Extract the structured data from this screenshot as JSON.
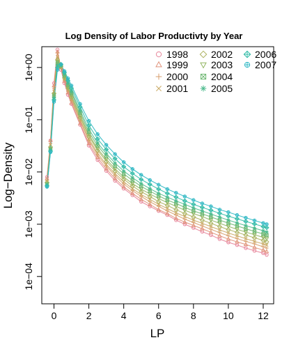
{
  "chart_data": {
    "type": "scatter",
    "title": "Log Density of Labor Productivty by Year",
    "xlabel": "LP",
    "ylabel": "Log−Density",
    "y_scale": "log10",
    "xlim": [
      -0.7,
      12.6
    ],
    "ylim": [
      3e-05,
      2.5
    ],
    "grid": false,
    "legend_position": "top-right",
    "x_ticks": [
      0,
      2,
      4,
      6,
      8,
      10,
      12
    ],
    "x_tick_labels": [
      "0",
      "2",
      "4",
      "6",
      "8",
      "10",
      "12"
    ],
    "y_ticks": [
      0.0001,
      0.001,
      0.01,
      0.1,
      1
    ],
    "y_tick_labels": [
      "1e−04",
      "1e−03",
      "1e−02",
      "1e−01",
      "1e+00"
    ],
    "x": [
      -0.4,
      -0.2,
      0.0,
      0.2,
      0.4,
      0.6,
      0.8,
      1.0,
      1.5,
      2.0,
      2.5,
      3.0,
      3.5,
      4.0,
      4.5,
      5.0,
      5.5,
      6.0,
      6.5,
      7.0,
      7.5,
      8.0,
      8.5,
      9.0,
      9.5,
      10.0,
      10.5,
      11.0,
      11.5,
      12.0,
      12.2
    ],
    "series": [
      {
        "name": "1998",
        "symbol": "circle",
        "color": "#E7859A",
        "values": [
          0.008,
          0.04,
          0.5,
          2.2,
          0.9,
          0.5,
          0.3,
          0.2,
          0.08,
          0.032,
          0.017,
          0.0105,
          0.0068,
          0.0048,
          0.0036,
          0.0027,
          0.0022,
          0.0018,
          0.0015,
          0.0012,
          0.001,
          0.00085,
          0.00072,
          0.00062,
          0.00052,
          0.00045,
          0.0004,
          0.00035,
          0.00031,
          0.00028,
          0.00026
        ]
      },
      {
        "name": "1999",
        "symbol": "triangle",
        "color": "#E0927A",
        "values": [
          0.0075,
          0.04,
          0.45,
          2.0,
          1.0,
          0.55,
          0.33,
          0.21,
          0.085,
          0.035,
          0.019,
          0.0115,
          0.0075,
          0.0052,
          0.0039,
          0.003,
          0.0024,
          0.0019,
          0.0016,
          0.0013,
          0.0011,
          0.00095,
          0.00082,
          0.0007,
          0.0006,
          0.00052,
          0.00046,
          0.00041,
          0.00036,
          0.00032,
          0.0003
        ]
      },
      {
        "name": "2000",
        "symbol": "plus",
        "color": "#D79E6B",
        "values": [
          0.007,
          0.035,
          0.4,
          1.9,
          1.0,
          0.58,
          0.35,
          0.23,
          0.095,
          0.04,
          0.021,
          0.013,
          0.0085,
          0.0059,
          0.0044,
          0.0034,
          0.0027,
          0.0022,
          0.0018,
          0.0015,
          0.00125,
          0.00108,
          0.00093,
          0.0008,
          0.00069,
          0.0006,
          0.00053,
          0.00047,
          0.00042,
          0.00037,
          0.00035
        ]
      },
      {
        "name": "2001",
        "symbol": "x",
        "color": "#C9A964",
        "values": [
          0.0065,
          0.033,
          0.35,
          1.6,
          1.0,
          0.6,
          0.37,
          0.25,
          0.1,
          0.043,
          0.023,
          0.014,
          0.0093,
          0.0065,
          0.0048,
          0.0037,
          0.003,
          0.0024,
          0.002,
          0.00165,
          0.0014,
          0.0012,
          0.00104,
          0.0009,
          0.00078,
          0.00068,
          0.0006,
          0.00053,
          0.00047,
          0.00042,
          0.0004
        ]
      },
      {
        "name": "2002",
        "symbol": "diamond",
        "color": "#ACB15E",
        "values": [
          0.0063,
          0.03,
          0.32,
          1.4,
          1.05,
          0.63,
          0.4,
          0.27,
          0.11,
          0.048,
          0.026,
          0.016,
          0.0104,
          0.0073,
          0.0054,
          0.0042,
          0.0034,
          0.0027,
          0.0023,
          0.0019,
          0.0016,
          0.00138,
          0.0012,
          0.00104,
          0.0009,
          0.00079,
          0.0007,
          0.00062,
          0.00055,
          0.00049,
          0.00046
        ]
      },
      {
        "name": "2003",
        "symbol": "triangle-down",
        "color": "#90B45F",
        "values": [
          0.006,
          0.028,
          0.3,
          1.3,
          1.05,
          0.66,
          0.42,
          0.29,
          0.12,
          0.052,
          0.028,
          0.0175,
          0.0115,
          0.008,
          0.006,
          0.0047,
          0.0038,
          0.0031,
          0.0026,
          0.0022,
          0.00185,
          0.0016,
          0.0014,
          0.0012,
          0.00104,
          0.00091,
          0.0008,
          0.00071,
          0.00063,
          0.00056,
          0.00053
        ]
      },
      {
        "name": "2004",
        "symbol": "square-cross",
        "color": "#6FB873",
        "values": [
          0.0058,
          0.027,
          0.28,
          1.2,
          1.1,
          0.7,
          0.46,
          0.32,
          0.135,
          0.058,
          0.032,
          0.02,
          0.013,
          0.0092,
          0.0069,
          0.0053,
          0.0043,
          0.0035,
          0.0029,
          0.0025,
          0.0021,
          0.0018,
          0.00158,
          0.00138,
          0.0012,
          0.00105,
          0.00093,
          0.00082,
          0.00073,
          0.00065,
          0.00062
        ]
      },
      {
        "name": "2005",
        "symbol": "asterisk",
        "color": "#4EBB8E",
        "values": [
          0.0056,
          0.026,
          0.26,
          1.1,
          1.1,
          0.75,
          0.5,
          0.35,
          0.15,
          0.066,
          0.036,
          0.0225,
          0.0148,
          0.0104,
          0.0078,
          0.006,
          0.0048,
          0.0039,
          0.0033,
          0.0028,
          0.0024,
          0.00205,
          0.0018,
          0.00157,
          0.00137,
          0.0012,
          0.00106,
          0.00094,
          0.00084,
          0.00075,
          0.00071
        ]
      },
      {
        "name": "2006",
        "symbol": "diamond-plus",
        "color": "#35BCA8",
        "values": [
          0.0054,
          0.025,
          0.24,
          1.0,
          1.15,
          0.8,
          0.56,
          0.4,
          0.175,
          0.078,
          0.043,
          0.027,
          0.018,
          0.0126,
          0.0094,
          0.0072,
          0.0058,
          0.0047,
          0.0039,
          0.0033,
          0.0028,
          0.0024,
          0.0021,
          0.00185,
          0.00162,
          0.00143,
          0.00127,
          0.00113,
          0.00101,
          0.0009,
          0.00086
        ]
      },
      {
        "name": "2007",
        "symbol": "circle-plus",
        "color": "#2FB8C4",
        "values": [
          0.0052,
          0.024,
          0.22,
          0.9,
          1.15,
          0.85,
          0.62,
          0.45,
          0.2,
          0.095,
          0.053,
          0.033,
          0.022,
          0.0154,
          0.0114,
          0.0088,
          0.007,
          0.0057,
          0.0047,
          0.004,
          0.0034,
          0.0029,
          0.0025,
          0.0022,
          0.0019,
          0.0017,
          0.0015,
          0.00133,
          0.00118,
          0.00105,
          0.001
        ]
      }
    ]
  }
}
